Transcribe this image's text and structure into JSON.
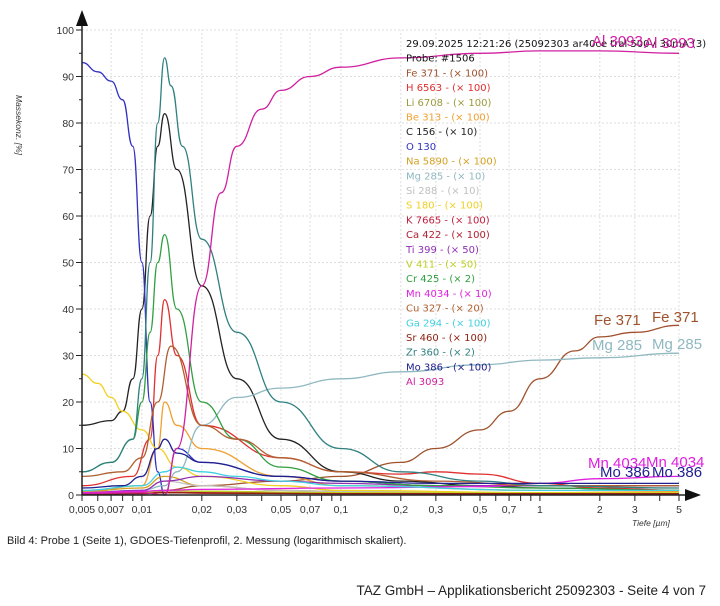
{
  "chart_data": {
    "type": "line",
    "title": "",
    "xlabel": "Tiefe [µm]",
    "ylabel": "Massekonz. [%]",
    "xscale": "log",
    "xlim": [
      0.005,
      5
    ],
    "ylim": [
      0,
      100
    ],
    "grid": true,
    "x_ticks": [
      0.005,
      0.007,
      0.01,
      0.02,
      0.03,
      0.05,
      0.07,
      0.1,
      0.2,
      0.3,
      0.5,
      0.7,
      1,
      2,
      3,
      5
    ],
    "x_tick_labels": [
      "0,005",
      "0,007",
      "0,01",
      "0,02",
      "0,03",
      "0,05",
      "0,07",
      "0,1",
      "0,2",
      "0,3",
      "0,5",
      "0,7",
      "1",
      "2",
      "3",
      "5"
    ],
    "y_ticks": [
      0,
      10,
      20,
      30,
      40,
      50,
      60,
      70,
      80,
      90,
      100
    ],
    "y_tick_labels": [
      "0",
      "10",
      "20",
      "30",
      "40",
      "50",
      "60",
      "70",
      "80",
      "90",
      "100"
    ],
    "legend_header": [
      "29.09.2025 12:21:26 (25092303 ar40ce tral 500V 30mA (3)",
      "Probe: #1506"
    ],
    "legend_placement": "top-right",
    "series": [
      {
        "name": "Fe 371 - (× 100)",
        "color": "#a0522d",
        "x": [
          0.005,
          0.01,
          0.013,
          0.02,
          0.05,
          0.1,
          0.2,
          0.3,
          0.5,
          0.7,
          1,
          1.5,
          2,
          3,
          5
        ],
        "y": [
          0.5,
          0.8,
          1,
          2,
          3,
          4,
          7,
          10,
          14,
          18,
          25,
          31,
          34,
          35,
          36.5
        ]
      },
      {
        "name": "H 6563 - (× 100)",
        "color": "#e03030",
        "x": [
          0.005,
          0.009,
          0.011,
          0.012,
          0.013,
          0.015,
          0.02,
          0.05,
          0.1,
          0.2,
          0.3,
          0.5,
          1,
          2,
          5
        ],
        "y": [
          2,
          4,
          12,
          30,
          42,
          30,
          15,
          8,
          5,
          4.5,
          5,
          4.5,
          2.5,
          1.5,
          1
        ]
      },
      {
        "name": "Li 6708 - (× 100)",
        "color": "#9a9a3a",
        "x": [
          0.005,
          0.01,
          0.013,
          0.02,
          0.05,
          0.1,
          1,
          5
        ],
        "y": [
          0.3,
          0.5,
          1,
          0.8,
          0.6,
          0.5,
          0.4,
          0.3
        ]
      },
      {
        "name": "Be 313 - (× 100)",
        "color": "#f0a030",
        "x": [
          0.005,
          0.01,
          0.012,
          0.013,
          0.015,
          0.02,
          0.05,
          0.1,
          1,
          5
        ],
        "y": [
          0.5,
          2,
          10,
          20,
          15,
          10,
          4,
          2,
          1,
          0.8
        ]
      },
      {
        "name": "C 156 - (× 10)",
        "color": "#222222",
        "x": [
          0.005,
          0.007,
          0.008,
          0.009,
          0.01,
          0.011,
          0.012,
          0.013,
          0.015,
          0.02,
          0.03,
          0.05,
          0.1,
          0.2,
          0.5,
          1,
          5
        ],
        "y": [
          15,
          16,
          18,
          25,
          40,
          60,
          75,
          82,
          70,
          45,
          25,
          12,
          5,
          3,
          2,
          1.5,
          1
        ]
      },
      {
        "name": "O 130",
        "color": "#3030c0",
        "x": [
          0.005,
          0.006,
          0.007,
          0.008,
          0.009,
          0.01,
          0.011,
          0.012,
          0.013,
          0.015,
          0.02,
          0.05,
          0.1,
          0.3,
          1,
          5
        ],
        "y": [
          93,
          91,
          89,
          85,
          75,
          50,
          20,
          5,
          0,
          10,
          7,
          4,
          3,
          2,
          2,
          2
        ]
      },
      {
        "name": "Na 5890 - (× 100)",
        "color": "#d4a020",
        "x": [
          0.005,
          0.01,
          0.013,
          0.02,
          0.05,
          0.1,
          1,
          5
        ],
        "y": [
          0.8,
          1.5,
          4,
          2,
          1,
          0.8,
          0.5,
          0.5
        ]
      },
      {
        "name": "Mg 285 - (× 10)",
        "color": "#8fb8c0",
        "x": [
          0.005,
          0.01,
          0.013,
          0.015,
          0.02,
          0.03,
          0.05,
          0.1,
          0.2,
          0.5,
          1,
          2,
          5
        ],
        "y": [
          0.5,
          1,
          2,
          5,
          15,
          21,
          23,
          25,
          26.5,
          28,
          29,
          29.5,
          30.5
        ]
      },
      {
        "name": "Si 288 - (× 10)",
        "color": "#c0c0c0",
        "x": [
          0.005,
          0.01,
          0.013,
          0.02,
          0.05,
          0.1,
          1,
          5
        ],
        "y": [
          0.5,
          1,
          3,
          2,
          1,
          0.8,
          0.5,
          0.5
        ]
      },
      {
        "name": "S 180 - (× 100)",
        "color": "#f0d020",
        "x": [
          0.005,
          0.006,
          0.007,
          0.008,
          0.01,
          0.012,
          0.015,
          0.02,
          0.05,
          0.1,
          1,
          5
        ],
        "y": [
          26,
          24,
          21,
          18,
          14,
          10,
          6,
          4,
          2,
          1,
          0.5,
          0.5
        ]
      },
      {
        "name": "K 7665 - (× 100)",
        "color": "#c02040",
        "x": [
          0.005,
          0.01,
          0.013,
          0.02,
          0.1,
          1,
          5
        ],
        "y": [
          0.3,
          0.4,
          0.6,
          0.5,
          0.4,
          0.3,
          0.3
        ]
      },
      {
        "name": "Ca 422 - (× 100)",
        "color": "#b02030",
        "x": [
          0.005,
          0.01,
          0.013,
          0.02,
          0.1,
          1,
          5
        ],
        "y": [
          0.2,
          0.3,
          0.5,
          0.4,
          0.3,
          0.2,
          0.2
        ]
      },
      {
        "name": "Ti 399 - (× 50)",
        "color": "#9030b0",
        "x": [
          0.005,
          0.01,
          0.013,
          0.02,
          0.05,
          0.1,
          0.3,
          1,
          5
        ],
        "y": [
          0.5,
          1,
          3,
          4,
          3,
          2.5,
          2,
          2,
          2
        ]
      },
      {
        "name": "V 411 - (× 50)",
        "color": "#c0d020",
        "x": [
          0.005,
          0.01,
          0.013,
          0.02,
          0.1,
          1,
          5
        ],
        "y": [
          0.3,
          0.5,
          1,
          0.8,
          0.5,
          0.4,
          0.4
        ]
      },
      {
        "name": "Cr 425 - (× 2)",
        "color": "#30a040",
        "x": [
          0.005,
          0.007,
          0.009,
          0.01,
          0.011,
          0.012,
          0.013,
          0.015,
          0.02,
          0.03,
          0.05,
          0.1,
          0.3,
          1,
          5
        ],
        "y": [
          5,
          7,
          12,
          20,
          35,
          50,
          56,
          40,
          20,
          12,
          6,
          3,
          2,
          1.5,
          1
        ]
      },
      {
        "name": "Mn 4034 - (× 10)",
        "color": "#e020e0",
        "x": [
          0.005,
          0.01,
          0.013,
          0.02,
          0.1,
          0.5,
          1,
          2,
          5
        ],
        "y": [
          0.5,
          0.8,
          1,
          1.2,
          1.5,
          1.8,
          2.5,
          3.5,
          4
        ]
      },
      {
        "name": "Cu 327 - (× 20)",
        "color": "#b06030",
        "x": [
          0.005,
          0.008,
          0.01,
          0.012,
          0.014,
          0.02,
          0.03,
          0.05,
          0.1,
          0.3,
          1,
          5
        ],
        "y": [
          4,
          5,
          8,
          20,
          32,
          15,
          12,
          8,
          5,
          3,
          2,
          2
        ]
      },
      {
        "name": "Ga 294 - (× 100)",
        "color": "#40d0e0",
        "x": [
          0.005,
          0.01,
          0.013,
          0.015,
          0.02,
          0.03,
          0.05,
          0.1,
          1,
          5
        ],
        "y": [
          1,
          2,
          5,
          6,
          5,
          4,
          3,
          2,
          1,
          1
        ]
      },
      {
        "name": "Sr 460 - (× 100)",
        "color": "#902010",
        "x": [
          0.005,
          0.01,
          0.013,
          0.02,
          0.1,
          1,
          5
        ],
        "y": [
          0.2,
          0.3,
          0.5,
          0.4,
          0.3,
          0.3,
          0.3
        ]
      },
      {
        "name": "Zr 360 - (× 2)",
        "color": "#308080",
        "x": [
          0.005,
          0.007,
          0.009,
          0.01,
          0.011,
          0.012,
          0.013,
          0.014,
          0.016,
          0.02,
          0.03,
          0.05,
          0.1,
          0.2,
          0.5,
          1,
          5
        ],
        "y": [
          5,
          7,
          12,
          25,
          50,
          80,
          94,
          88,
          75,
          55,
          35,
          20,
          10,
          5,
          3,
          2,
          1.5
        ]
      },
      {
        "name": "Mo 386 - (× 100)",
        "color": "#202090",
        "x": [
          0.005,
          0.008,
          0.01,
          0.012,
          0.013,
          0.015,
          0.02,
          0.05,
          0.1,
          0.3,
          1,
          2,
          5
        ],
        "y": [
          1.5,
          2,
          4,
          10,
          12,
          9,
          7,
          4,
          3,
          2.5,
          2.5,
          2.5,
          2.5
        ]
      },
      {
        "name": "Al 3093",
        "color": "#d020a0",
        "x": [
          0.005,
          0.01,
          0.013,
          0.015,
          0.02,
          0.025,
          0.03,
          0.04,
          0.05,
          0.07,
          0.1,
          0.2,
          0.5,
          1,
          2,
          5
        ],
        "y": [
          0.3,
          0.5,
          0,
          10,
          45,
          65,
          75,
          83,
          87,
          90,
          92,
          94,
          95,
          95.5,
          95.5,
          95
        ]
      }
    ],
    "end_labels": [
      {
        "text": "Al 3093",
        "color": "#d020a0"
      },
      {
        "text": "Fe 371",
        "color": "#a0522d"
      },
      {
        "text": "Mg 285",
        "color": "#8fb8c0"
      },
      {
        "text": "Mn 4034",
        "color": "#e020e0"
      },
      {
        "text": "Mo 386",
        "color": "#202090"
      }
    ]
  },
  "caption": "Bild 4: Probe 1 (Seite 1), GDOES-Tiefenprofil, 2. Messung (logarithmisch skaliert).",
  "footer": "TAZ GmbH – Applikationsbericht 25092303 - Seite 4 von 7"
}
